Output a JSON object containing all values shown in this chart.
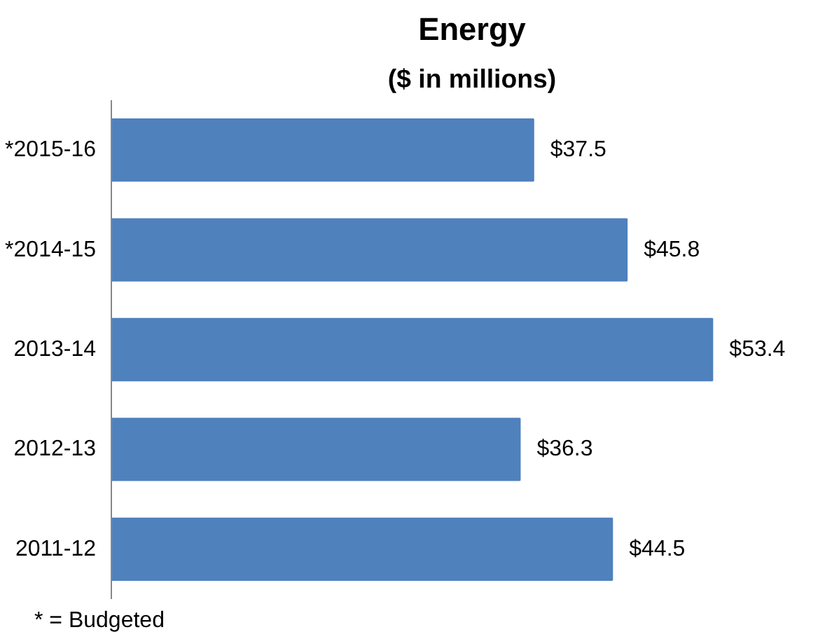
{
  "chart_data": {
    "type": "bar",
    "orientation": "horizontal",
    "title": "Energy",
    "subtitle": "($ in millions)",
    "categories": [
      "*2015-16",
      "*2014-15",
      "2013-14",
      "2012-13",
      "2011-12"
    ],
    "values": [
      37.5,
      45.8,
      53.4,
      36.3,
      44.5
    ],
    "value_labels": [
      "$37.5",
      "$45.8",
      "$53.4",
      "$36.3",
      "$44.5"
    ],
    "color": "#4f81bd",
    "grid": false,
    "annotations": [
      "* = Budgeted"
    ]
  }
}
